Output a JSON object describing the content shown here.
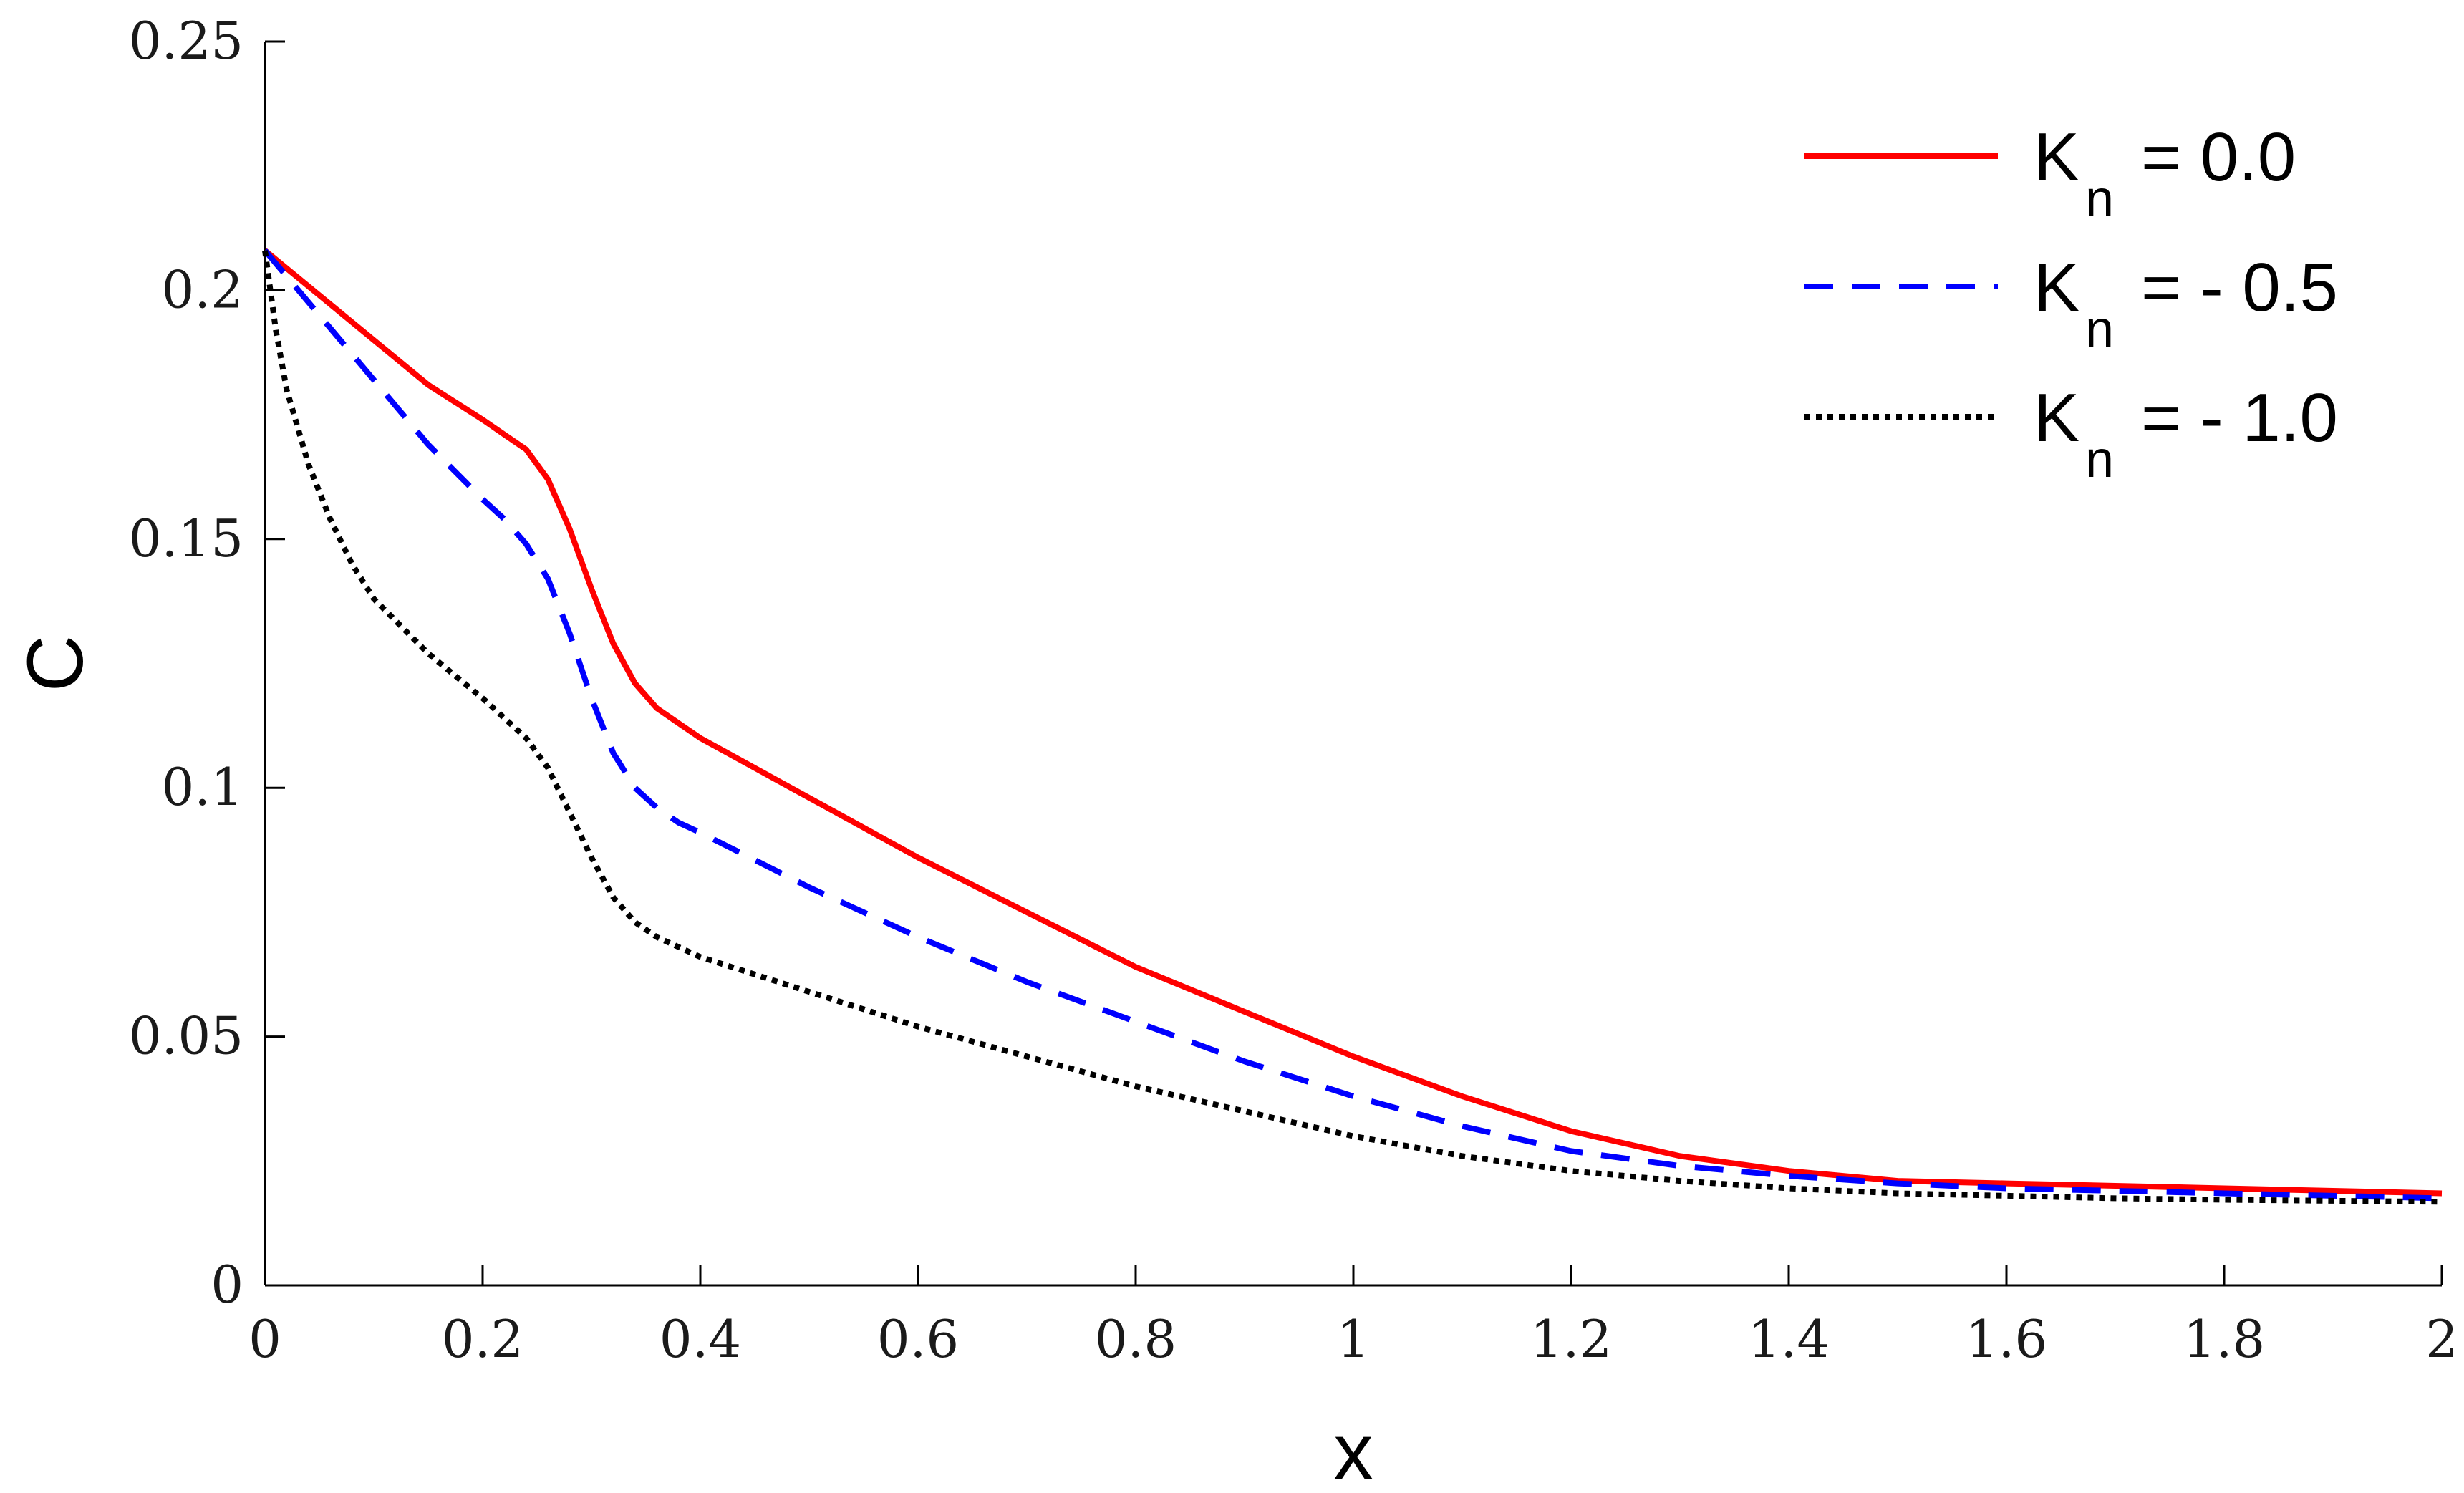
{
  "chart_data": {
    "type": "line",
    "title": "",
    "xlabel": "x",
    "ylabel": "C",
    "xlim": [
      0,
      2
    ],
    "ylim": [
      0,
      0.25
    ],
    "xticks": [
      0,
      0.2,
      0.4,
      0.6,
      0.8,
      1,
      1.2,
      1.4,
      1.6,
      1.8,
      2
    ],
    "xtick_labels": [
      "0",
      "0.2",
      "0.4",
      "0.6",
      "0.8",
      "1",
      "1.2",
      "1.4",
      "1.6",
      "1.8",
      "2"
    ],
    "yticks": [
      0,
      0.05,
      0.1,
      0.15,
      0.2,
      0.25
    ],
    "ytick_labels": [
      "0",
      "0.05",
      "0.1",
      "0.15",
      "0.2",
      "0.25"
    ],
    "grid": false,
    "legend_position": "top-right",
    "series": [
      {
        "name": "K",
        "subscript": "n",
        "value_text": "= 0.0",
        "color": "#ff0000",
        "style": "solid",
        "x": [
          0,
          0.05,
          0.1,
          0.15,
          0.2,
          0.22,
          0.24,
          0.26,
          0.28,
          0.3,
          0.32,
          0.34,
          0.36,
          0.38,
          0.4,
          0.5,
          0.6,
          0.7,
          0.8,
          0.9,
          1.0,
          1.1,
          1.2,
          1.3,
          1.4,
          1.5,
          1.6,
          1.7,
          1.8,
          1.9,
          2.0
        ],
        "y": [
          0.208,
          0.199,
          0.19,
          0.181,
          0.174,
          0.171,
          0.168,
          0.162,
          0.152,
          0.14,
          0.129,
          0.121,
          0.116,
          0.113,
          0.11,
          0.098,
          0.086,
          0.075,
          0.064,
          0.055,
          0.046,
          0.038,
          0.031,
          0.026,
          0.023,
          0.021,
          0.0205,
          0.02,
          0.0195,
          0.019,
          0.0185
        ]
      },
      {
        "name": "K",
        "subscript": "n",
        "value_text": "= - 0.5",
        "color": "#0000ff",
        "style": "dashed",
        "x": [
          0,
          0.05,
          0.1,
          0.15,
          0.2,
          0.22,
          0.24,
          0.26,
          0.28,
          0.3,
          0.32,
          0.34,
          0.36,
          0.38,
          0.4,
          0.5,
          0.6,
          0.7,
          0.8,
          0.9,
          1.0,
          1.1,
          1.2,
          1.3,
          1.4,
          1.5,
          1.6,
          1.7,
          1.8,
          1.9,
          2.0
        ],
        "y": [
          0.208,
          0.195,
          0.182,
          0.169,
          0.158,
          0.154,
          0.149,
          0.142,
          0.131,
          0.118,
          0.107,
          0.1,
          0.096,
          0.093,
          0.091,
          0.08,
          0.07,
          0.061,
          0.053,
          0.045,
          0.038,
          0.032,
          0.027,
          0.024,
          0.022,
          0.0205,
          0.0195,
          0.019,
          0.0185,
          0.018,
          0.0175
        ]
      },
      {
        "name": "K",
        "subscript": "n",
        "value_text": "= - 1.0",
        "color": "#000000",
        "style": "dotted",
        "x": [
          0,
          0.01,
          0.02,
          0.04,
          0.06,
          0.08,
          0.1,
          0.15,
          0.2,
          0.22,
          0.24,
          0.26,
          0.28,
          0.3,
          0.32,
          0.34,
          0.36,
          0.38,
          0.4,
          0.5,
          0.6,
          0.7,
          0.8,
          0.9,
          1.0,
          1.1,
          1.2,
          1.3,
          1.4,
          1.5,
          1.6,
          1.7,
          1.8,
          1.9,
          2.0
        ],
        "y": [
          0.208,
          0.192,
          0.18,
          0.165,
          0.154,
          0.145,
          0.138,
          0.127,
          0.118,
          0.114,
          0.11,
          0.104,
          0.095,
          0.086,
          0.078,
          0.073,
          0.07,
          0.068,
          0.066,
          0.059,
          0.052,
          0.046,
          0.04,
          0.035,
          0.03,
          0.026,
          0.023,
          0.021,
          0.0195,
          0.0185,
          0.018,
          0.0175,
          0.0172,
          0.017,
          0.0168
        ]
      }
    ]
  }
}
